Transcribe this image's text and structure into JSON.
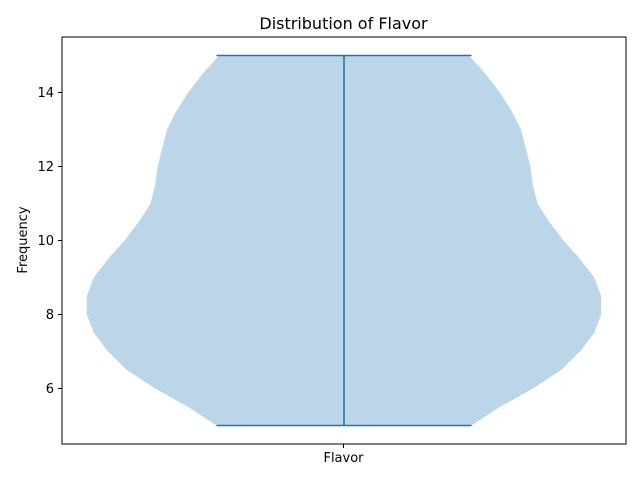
{
  "chart_data": {
    "type": "violin",
    "title": "Distribution of Flavor",
    "xlabel": "Flavor",
    "ylabel": "Frequency",
    "categories": [
      "Flavor"
    ],
    "ylim": [
      4.5,
      15.5
    ],
    "yticks": [
      6,
      8,
      10,
      12,
      14
    ],
    "ytick_labels": [
      "6",
      "8",
      "10",
      "12",
      "14"
    ],
    "grid": false,
    "series": [
      {
        "min": 5,
        "max": 15,
        "density": [
          {
            "y": 5.0,
            "w": 0.54
          },
          {
            "y": 5.5,
            "w": 0.66
          },
          {
            "y": 6.0,
            "w": 0.8
          },
          {
            "y": 6.5,
            "w": 0.92
          },
          {
            "y": 7.0,
            "w": 1.0
          },
          {
            "y": 7.5,
            "w": 1.06
          },
          {
            "y": 8.0,
            "w": 1.09
          },
          {
            "y": 8.5,
            "w": 1.09
          },
          {
            "y": 9.0,
            "w": 1.06
          },
          {
            "y": 9.5,
            "w": 1.0
          },
          {
            "y": 10.0,
            "w": 0.93
          },
          {
            "y": 10.5,
            "w": 0.87
          },
          {
            "y": 11.0,
            "w": 0.82
          },
          {
            "y": 11.5,
            "w": 0.8
          },
          {
            "y": 12.0,
            "w": 0.79
          },
          {
            "y": 12.5,
            "w": 0.77
          },
          {
            "y": 13.0,
            "w": 0.75
          },
          {
            "y": 13.5,
            "w": 0.71
          },
          {
            "y": 14.0,
            "w": 0.66
          },
          {
            "y": 14.5,
            "w": 0.6
          },
          {
            "y": 15.0,
            "w": 0.53
          }
        ]
      }
    ],
    "colors": {
      "body": "#bbd6e8",
      "lines": "#1f77b4",
      "axes": "#000000"
    }
  }
}
